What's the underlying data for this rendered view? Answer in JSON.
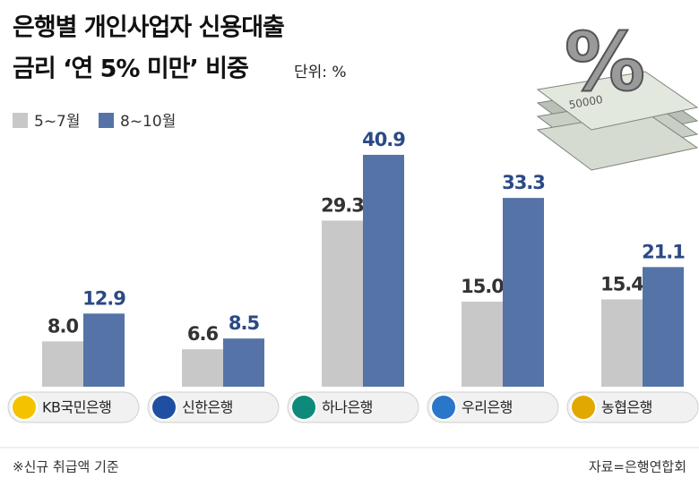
{
  "chart_data": {
    "type": "bar",
    "title": "은행별 개인사업자 신용대출",
    "subtitle": "금리 ‘연 5% 미만’ 비중",
    "unit": "단위: %",
    "categories": [
      "KB국민은행",
      "신한은행",
      "하나은행",
      "우리은행",
      "농협은행"
    ],
    "series": [
      {
        "name": "5~7월",
        "color": "#c8c8c8",
        "label_color": "#333333",
        "values": [
          8,
          6.6,
          29.3,
          15,
          15.4
        ],
        "value_labels": [
          "8.0",
          "6.6",
          "29.3",
          "15.0",
          "15.4"
        ]
      },
      {
        "name": "8~10월",
        "color": "#5673a8",
        "label_color": "#2b4a85",
        "values": [
          12.9,
          8.5,
          40.9,
          33.3,
          21.1
        ],
        "value_labels": [
          "12.9",
          "8.5",
          "40.9",
          "33.3",
          "21.1"
        ]
      }
    ],
    "ylim": [
      0,
      45
    ],
    "note": "※신규 취급액 기준",
    "source": "자료=은행연합회"
  }
}
